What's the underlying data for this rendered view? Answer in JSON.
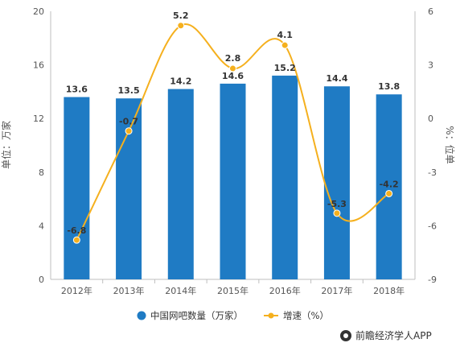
{
  "chart_data": {
    "type": "bar",
    "categories": [
      "2012年",
      "2013年",
      "2014年",
      "2015年",
      "2016年",
      "2017年",
      "2018年"
    ],
    "series": [
      {
        "name": "中国网吧数量（万家）",
        "type": "bar",
        "axis": "left",
        "color": "#1f7bc4",
        "values": [
          13.6,
          13.5,
          14.2,
          14.6,
          15.2,
          14.4,
          13.8
        ]
      },
      {
        "name": "增速（%）",
        "type": "line",
        "axis": "right",
        "color": "#f5b01e",
        "values": [
          -6.8,
          -0.7,
          5.2,
          2.8,
          4.1,
          -5.3,
          -4.2
        ]
      }
    ],
    "ylabel": "单位：万家",
    "y2label": "%：位单",
    "ylim": [
      0,
      20
    ],
    "y2lim": [
      -9,
      6
    ],
    "yticks": [
      "0",
      "4",
      "8",
      "12",
      "16",
      "20"
    ],
    "y2ticks": [
      "-9",
      "-6",
      "-3",
      "0",
      "3",
      "6"
    ],
    "grid": false,
    "legend_position": "bottom-center",
    "line_smooth": true
  },
  "credit": {
    "text": "前瞻经济学人APP",
    "icon": "brand-circle-icon"
  }
}
